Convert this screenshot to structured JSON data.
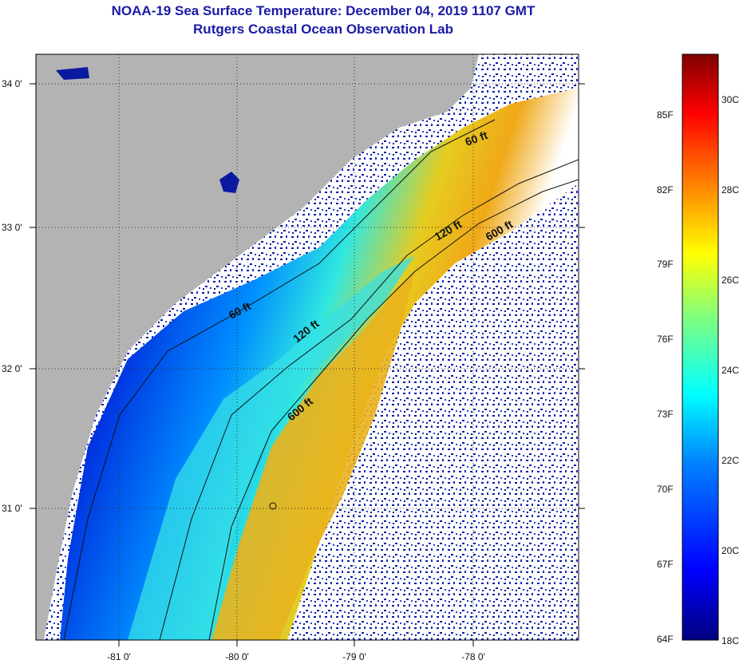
{
  "title": {
    "line1": "NOAA-19 Sea Surface Temperature:  December 04, 2019 1107 GMT",
    "line2": "Rutgers Coastal Ocean Observation Lab"
  },
  "map": {
    "latitude_labels": [
      "34 0'",
      "33 0'",
      "32 0'",
      "31 0'"
    ],
    "longitude_labels": [
      "-81 0'",
      "-80 0'",
      "-79 0'",
      "-78 0'"
    ],
    "contour_labels": [
      "60 ft",
      "120 ft",
      "600 ft",
      "120 ft",
      "600 ft",
      "60 ft"
    ],
    "colors": {
      "land": "#b3b3b3",
      "cloud": "#ffffff",
      "frame": "#000000"
    }
  },
  "colorbar": {
    "fahrenheit_labels": [
      "85F",
      "82F",
      "79F",
      "76F",
      "73F",
      "70F",
      "67F",
      "64F"
    ],
    "celsius_labels": [
      "30C",
      "28C",
      "26C",
      "24C",
      "22C",
      "20C",
      "18C"
    ],
    "gradient_stops": [
      "#00007f",
      "#0000ff",
      "#0080ff",
      "#00ffff",
      "#80ff80",
      "#ffff00",
      "#ff8000",
      "#ff0000",
      "#7f0000"
    ]
  }
}
